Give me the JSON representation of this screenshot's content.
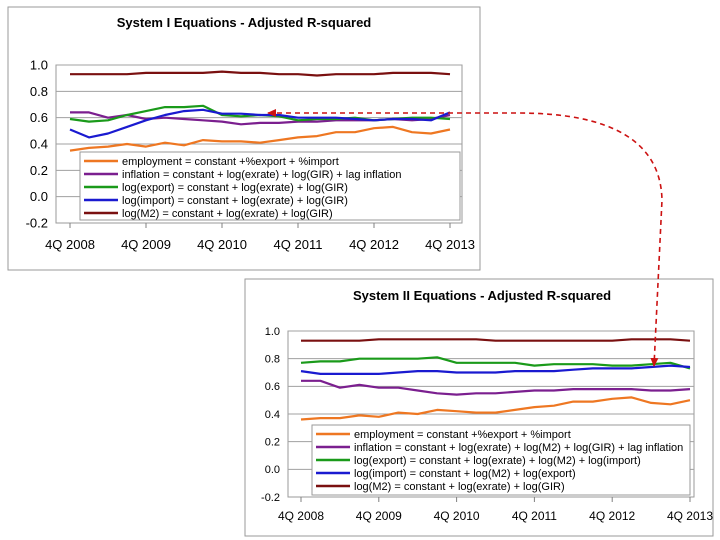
{
  "chart_data": [
    {
      "type": "line",
      "title": "System I Equations - Adjusted R-squared",
      "xlabel": "",
      "ylabel": "",
      "ylim": [
        -0.2,
        1.0
      ],
      "yticks": [
        "1.0",
        "0.8",
        "0.6",
        "0.4",
        "0.2",
        "0.0",
        "-0.2"
      ],
      "xticks": [
        "4Q 2008",
        "4Q 2009",
        "4Q 2010",
        "4Q 2011",
        "4Q 2012",
        "4Q 2013"
      ],
      "x": [
        "4Q 2008",
        "1Q 2009",
        "2Q 2009",
        "3Q 2009",
        "4Q 2009",
        "1Q 2010",
        "2Q 2010",
        "3Q 2010",
        "4Q 2010",
        "1Q 2011",
        "2Q 2011",
        "3Q 2011",
        "4Q 2011",
        "1Q 2012",
        "2Q 2012",
        "3Q 2012",
        "4Q 2012",
        "1Q 2013",
        "2Q 2013",
        "3Q 2013",
        "4Q 2013"
      ],
      "series": [
        {
          "name": "employment = constant +%export + %import",
          "color": "#ee7722",
          "values": [
            0.35,
            0.37,
            0.38,
            0.4,
            0.38,
            0.41,
            0.39,
            0.43,
            0.42,
            0.42,
            0.41,
            0.43,
            0.45,
            0.46,
            0.49,
            0.49,
            0.52,
            0.53,
            0.49,
            0.48,
            0.51
          ]
        },
        {
          "name": "inflation = constant + log(exrate) + log(GIR) + lag inflation",
          "color": "#7b1f8f",
          "values": [
            0.64,
            0.64,
            0.6,
            0.62,
            0.59,
            0.6,
            0.59,
            0.58,
            0.57,
            0.55,
            0.56,
            0.56,
            0.57,
            0.57,
            0.58,
            0.58,
            0.58,
            0.59,
            0.58,
            0.59,
            0.62
          ]
        },
        {
          "name": "log(export) = constant + log(exrate) + log(GIR)",
          "color": "#1a9a1a",
          "values": [
            0.59,
            0.57,
            0.58,
            0.62,
            0.65,
            0.68,
            0.68,
            0.69,
            0.62,
            0.61,
            0.62,
            0.61,
            0.58,
            0.59,
            0.59,
            0.6,
            0.58,
            0.59,
            0.6,
            0.6,
            0.59
          ]
        },
        {
          "name": "log(import) = constant + log(exrate) + log(GIR)",
          "color": "#1a1ad0",
          "values": [
            0.51,
            0.45,
            0.48,
            0.53,
            0.58,
            0.62,
            0.65,
            0.66,
            0.63,
            0.63,
            0.62,
            0.62,
            0.6,
            0.6,
            0.6,
            0.59,
            0.58,
            0.59,
            0.59,
            0.58,
            0.64
          ]
        },
        {
          "name": "log(M2) = constant + log(exrate) + log(GIR)",
          "color": "#7a1010",
          "values": [
            0.93,
            0.93,
            0.93,
            0.93,
            0.94,
            0.94,
            0.94,
            0.94,
            0.95,
            0.94,
            0.94,
            0.93,
            0.93,
            0.92,
            0.93,
            0.93,
            0.93,
            0.94,
            0.94,
            0.94,
            0.93
          ]
        }
      ]
    },
    {
      "type": "line",
      "title": "System II Equations - Adjusted R-squared",
      "xlabel": "",
      "ylabel": "",
      "ylim": [
        -0.2,
        1.0
      ],
      "yticks": [
        "1.0",
        "0.8",
        "0.6",
        "0.4",
        "0.2",
        "0.0",
        "-0.2"
      ],
      "xticks": [
        "4Q 2008",
        "4Q 2009",
        "4Q 2010",
        "4Q 2011",
        "4Q 2012",
        "4Q 2013"
      ],
      "x": [
        "4Q 2008",
        "1Q 2009",
        "2Q 2009",
        "3Q 2009",
        "4Q 2009",
        "1Q 2010",
        "2Q 2010",
        "3Q 2010",
        "4Q 2010",
        "1Q 2011",
        "2Q 2011",
        "3Q 2011",
        "4Q 2011",
        "1Q 2012",
        "2Q 2012",
        "3Q 2012",
        "4Q 2012",
        "1Q 2013",
        "2Q 2013",
        "3Q 2013",
        "4Q 2013"
      ],
      "series": [
        {
          "name": "employment = constant +%export + %import",
          "color": "#ee7722",
          "values": [
            0.36,
            0.37,
            0.37,
            0.39,
            0.38,
            0.41,
            0.4,
            0.43,
            0.42,
            0.41,
            0.41,
            0.43,
            0.45,
            0.46,
            0.49,
            0.49,
            0.51,
            0.52,
            0.48,
            0.47,
            0.5
          ]
        },
        {
          "name": "inflation = constant + log(exrate) + log(M2) + log(GIR) + lag inflation",
          "color": "#7b1f8f",
          "values": [
            0.64,
            0.64,
            0.59,
            0.61,
            0.59,
            0.59,
            0.57,
            0.55,
            0.54,
            0.55,
            0.55,
            0.56,
            0.57,
            0.57,
            0.58,
            0.58,
            0.58,
            0.58,
            0.57,
            0.57,
            0.58
          ]
        },
        {
          "name": "log(export) = constant + log(exrate) + log(M2) + log(import)",
          "color": "#1a9a1a",
          "values": [
            0.77,
            0.78,
            0.78,
            0.8,
            0.8,
            0.8,
            0.8,
            0.81,
            0.77,
            0.77,
            0.77,
            0.77,
            0.75,
            0.76,
            0.76,
            0.76,
            0.75,
            0.75,
            0.76,
            0.77,
            0.73
          ]
        },
        {
          "name": "log(import) = constant + log(M2) + log(export)",
          "color": "#1a1ad0",
          "values": [
            0.71,
            0.69,
            0.69,
            0.69,
            0.69,
            0.7,
            0.71,
            0.71,
            0.7,
            0.7,
            0.7,
            0.71,
            0.71,
            0.71,
            0.72,
            0.73,
            0.73,
            0.73,
            0.74,
            0.75,
            0.74
          ]
        },
        {
          "name": "log(M2) = constant + log(exrate) + log(GIR)",
          "color": "#7a1010",
          "values": [
            0.93,
            0.93,
            0.93,
            0.93,
            0.94,
            0.94,
            0.94,
            0.94,
            0.94,
            0.94,
            0.93,
            0.93,
            0.93,
            0.93,
            0.93,
            0.93,
            0.93,
            0.94,
            0.94,
            0.94,
            0.93
          ]
        }
      ]
    }
  ],
  "annotation": {
    "type": "dashed-double-arrow",
    "color": "#cc1111"
  }
}
